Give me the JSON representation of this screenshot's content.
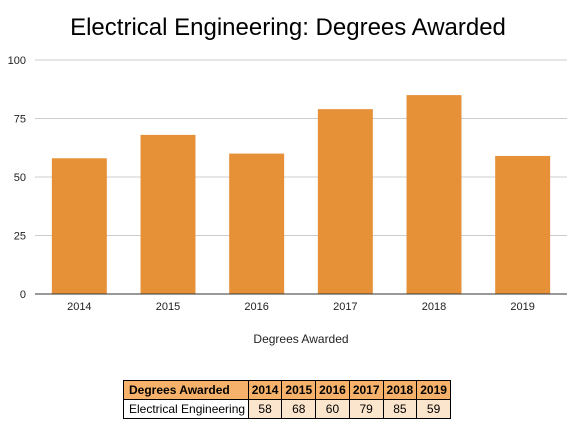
{
  "chart_data": {
    "type": "bar",
    "title": "Electrical Engineering: Degrees Awarded",
    "xlabel": "Degrees Awarded",
    "ylabel": "",
    "categories": [
      "2014",
      "2015",
      "2016",
      "2017",
      "2018",
      "2019"
    ],
    "series": [
      {
        "name": "Electrical Engineering",
        "values": [
          58,
          68,
          60,
          79,
          85,
          59
        ]
      }
    ],
    "ylim": [
      0,
      100
    ],
    "yticks": [
      "0",
      "25",
      "50",
      "75",
      "100"
    ],
    "grid": true,
    "legend": "none",
    "bar_color": "#e69138"
  },
  "table": {
    "header_label": "Degrees Awarded",
    "years": [
      "2014",
      "2015",
      "2016",
      "2017",
      "2018",
      "2019"
    ],
    "row_label": "Electrical Engineering",
    "values": [
      "58",
      "68",
      "60",
      "79",
      "85",
      "59"
    ]
  },
  "colors": {
    "header_fill": "#f6b26b",
    "cell_fill": "#fce5cd",
    "gridline": "#cccccc",
    "axis": "#333333"
  }
}
